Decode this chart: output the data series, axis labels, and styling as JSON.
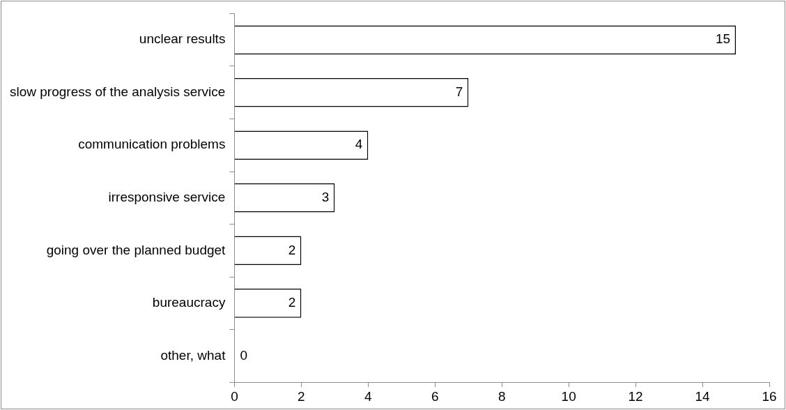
{
  "chart_data": {
    "type": "bar",
    "orientation": "horizontal",
    "categories": [
      "unclear results",
      "slow progress of the analysis service",
      "communication problems",
      "irresponsive service",
      "going over the planned budget",
      "bureaucracy",
      "other, what"
    ],
    "values": [
      15,
      7,
      4,
      3,
      2,
      2,
      0
    ],
    "color": "#ffffff",
    "xlim": [
      0,
      16
    ],
    "xticks": [
      0,
      2,
      4,
      6,
      8,
      10,
      12,
      14,
      16
    ],
    "data_labels": true,
    "legend": false
  }
}
